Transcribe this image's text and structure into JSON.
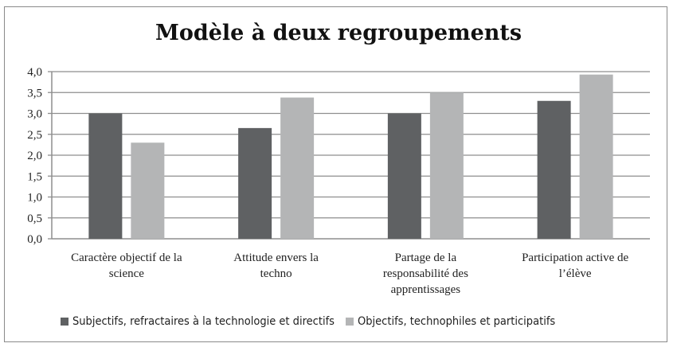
{
  "chart_data": {
    "type": "bar",
    "title": "Modèle à deux regroupements",
    "categories": [
      [
        "Caractère objectif de la",
        "science"
      ],
      [
        "Attitude envers la",
        "techno"
      ],
      [
        "Partage de la",
        "responsabilité des",
        "apprentissages"
      ],
      [
        "Participation active de",
        "l’élève"
      ]
    ],
    "series": [
      {
        "name": "Subjectifs, refractaires à la technologie et directifs",
        "color": "#5f6163",
        "values": [
          3.0,
          2.65,
          3.0,
          3.3
        ]
      },
      {
        "name": "Objectifs, technophiles et participatifs",
        "color": "#b4b5b6",
        "values": [
          2.3,
          3.38,
          3.5,
          3.93
        ]
      }
    ],
    "ylim": [
      0,
      4
    ],
    "yticks": [
      "0,0",
      "0,5",
      "1,0",
      "1,5",
      "2,0",
      "2,5",
      "3,0",
      "3,5",
      "4,0"
    ],
    "grid": true,
    "legend_position": "bottom"
  }
}
